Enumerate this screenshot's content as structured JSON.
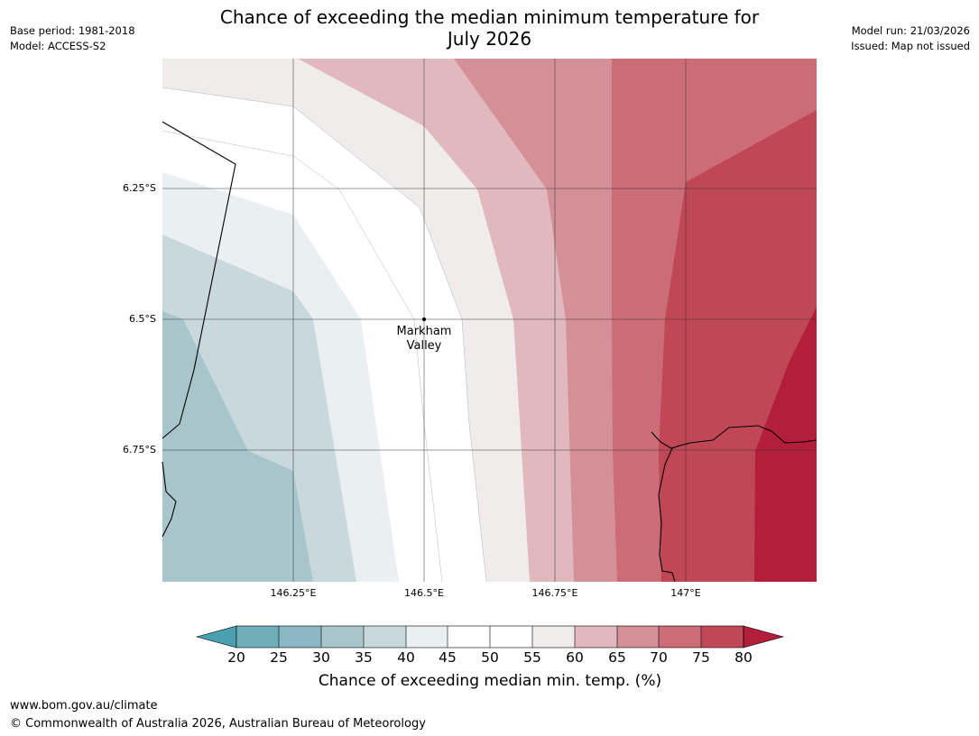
{
  "title": {
    "line1": "Chance of exceeding the median minimum temperature for",
    "line2": "July 2026"
  },
  "meta_left": {
    "base_period": "Base period: 1981-2018",
    "model": "Model: ACCESS-S2"
  },
  "meta_right": {
    "model_run": "Model run: 21/03/2026",
    "issued": "Issued: Map not issued"
  },
  "map": {
    "lat_labels": [
      "6.25°S",
      "6.5°S",
      "6.75°S"
    ],
    "lon_labels": [
      "146.25°E",
      "146.5°E",
      "146.75°E",
      "147°E"
    ],
    "place": {
      "line1": "Markham",
      "line2": "Valley"
    }
  },
  "colorbar": {
    "ticks": [
      "20",
      "25",
      "30",
      "35",
      "40",
      "45",
      "50",
      "55",
      "60",
      "65",
      "70",
      "75",
      "80"
    ],
    "colors": {
      "below_20": "#4aa0b0",
      "20_25": "#6eaebb",
      "25_30": "#8bb7c2",
      "30_35": "#a8c5cb",
      "35_40": "#c8d8dc",
      "40_45": "#eaeff2",
      "45_55": "#ffffff",
      "55_60": "#efeceb",
      "60_65": "#e0b8be",
      "65_70": "#d59097",
      "70_75": "#cb6c76",
      "75_80": "#c04755",
      "above_80": "#b31e3a"
    },
    "label": "Chance of exceeding median min. temp. (%)"
  },
  "footer": {
    "url": "www.bom.gov.au/climate",
    "copyright": "© Commonwealth of Australia 2026, Australian Bureau of Meteorology"
  }
}
